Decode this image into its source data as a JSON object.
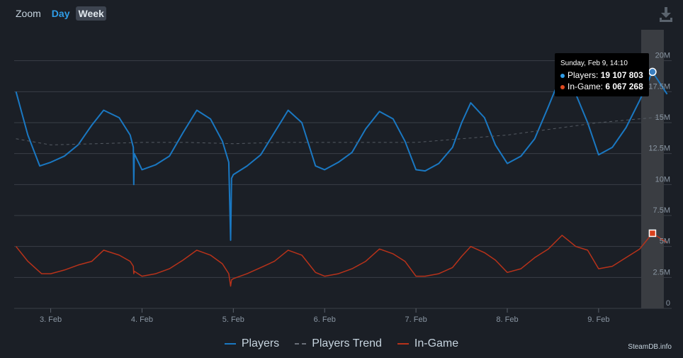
{
  "toolbar": {
    "zoom_label": "Zoom",
    "day_label": "Day",
    "week_label": "Week",
    "download_icon": "download-icon"
  },
  "legend": {
    "players": "Players",
    "trend": "Players Trend",
    "ingame": "In-Game"
  },
  "tooltip": {
    "title": "Sunday, Feb 9, 14:10",
    "players_label": "Players:",
    "players_value": "19 107 803",
    "ingame_label": "In-Game:",
    "ingame_value": "6 067 268"
  },
  "credit": "SteamDB.info",
  "colors": {
    "background": "#1b1f26",
    "players": "#1a78c2",
    "ingame": "#b8321a",
    "trend": "#555b63",
    "grid": "#3a3f47",
    "highlight": "#3a3d42"
  },
  "chart_data": {
    "type": "line",
    "xlabel": "",
    "ylabel": "",
    "ylim": [
      0,
      22500000
    ],
    "yticks": [
      0,
      2500000,
      5000000,
      7500000,
      10000000,
      12500000,
      15000000,
      17500000,
      20000000
    ],
    "ytick_labels": [
      "0",
      "2.5M",
      "5M",
      "7.5M",
      "10M",
      "12.5M",
      "15M",
      "17.5M",
      "20M"
    ],
    "xlim": [
      2.6,
      9.8
    ],
    "xticks": [
      3,
      4,
      5,
      6,
      7,
      8,
      9
    ],
    "xtick_labels": [
      "3. Feb",
      "4. Feb",
      "5. Feb",
      "6. Feb",
      "7. Feb",
      "8. Feb",
      "9. Feb"
    ],
    "legend_position": "bottom-center",
    "grid": true,
    "highlight_x": 9.59,
    "series": [
      {
        "name": "Players",
        "points": [
          [
            2.62,
            17.5
          ],
          [
            2.75,
            14.0
          ],
          [
            2.88,
            11.5
          ],
          [
            3.0,
            11.8
          ],
          [
            3.15,
            12.3
          ],
          [
            3.3,
            13.2
          ],
          [
            3.45,
            14.8
          ],
          [
            3.58,
            16.0
          ],
          [
            3.75,
            15.4
          ],
          [
            3.87,
            14.0
          ],
          [
            3.905,
            13.0
          ],
          [
            3.91,
            10.0
          ],
          [
            3.915,
            12.5
          ],
          [
            4.0,
            11.2
          ],
          [
            4.15,
            11.6
          ],
          [
            4.3,
            12.3
          ],
          [
            4.45,
            14.2
          ],
          [
            4.6,
            16.0
          ],
          [
            4.75,
            15.3
          ],
          [
            4.88,
            13.5
          ],
          [
            4.95,
            11.8
          ],
          [
            4.97,
            5.5
          ],
          [
            4.98,
            10.5
          ],
          [
            5.0,
            10.8
          ],
          [
            5.15,
            11.5
          ],
          [
            5.3,
            12.4
          ],
          [
            5.45,
            14.2
          ],
          [
            5.6,
            16.0
          ],
          [
            5.75,
            15.0
          ],
          [
            5.9,
            11.5
          ],
          [
            6.0,
            11.2
          ],
          [
            6.15,
            11.8
          ],
          [
            6.3,
            12.6
          ],
          [
            6.45,
            14.5
          ],
          [
            6.6,
            15.9
          ],
          [
            6.75,
            15.3
          ],
          [
            6.88,
            13.5
          ],
          [
            7.0,
            11.2
          ],
          [
            7.1,
            11.1
          ],
          [
            7.25,
            11.7
          ],
          [
            7.4,
            13.0
          ],
          [
            7.5,
            15.0
          ],
          [
            7.6,
            16.6
          ],
          [
            7.75,
            15.4
          ],
          [
            7.87,
            13.2
          ],
          [
            8.0,
            11.7
          ],
          [
            8.15,
            12.3
          ],
          [
            8.3,
            13.7
          ],
          [
            8.45,
            16.3
          ],
          [
            8.6,
            19.0
          ],
          [
            8.75,
            17.3
          ],
          [
            8.88,
            15.0
          ],
          [
            9.0,
            12.4
          ],
          [
            9.15,
            13.0
          ],
          [
            9.3,
            14.6
          ],
          [
            9.45,
            16.8
          ],
          [
            9.59,
            19.1
          ],
          [
            9.75,
            17.3
          ]
        ]
      },
      {
        "name": "Players Trend",
        "points": [
          [
            2.62,
            13.7
          ],
          [
            3.0,
            13.2
          ],
          [
            3.5,
            13.3
          ],
          [
            4.0,
            13.4
          ],
          [
            4.5,
            13.4
          ],
          [
            5.0,
            13.3
          ],
          [
            5.5,
            13.4
          ],
          [
            6.0,
            13.4
          ],
          [
            6.5,
            13.4
          ],
          [
            7.0,
            13.4
          ],
          [
            7.5,
            13.7
          ],
          [
            8.0,
            14.0
          ],
          [
            8.5,
            14.5
          ],
          [
            9.0,
            15.0
          ],
          [
            9.59,
            15.4
          ],
          [
            9.75,
            15.5
          ]
        ]
      },
      {
        "name": "In-Game",
        "points": [
          [
            2.62,
            5.0
          ],
          [
            2.75,
            3.8
          ],
          [
            2.9,
            2.8
          ],
          [
            3.0,
            2.8
          ],
          [
            3.15,
            3.1
          ],
          [
            3.3,
            3.5
          ],
          [
            3.45,
            3.8
          ],
          [
            3.58,
            4.7
          ],
          [
            3.75,
            4.3
          ],
          [
            3.87,
            3.8
          ],
          [
            3.905,
            3.4
          ],
          [
            3.91,
            2.8
          ],
          [
            3.915,
            3.0
          ],
          [
            4.0,
            2.6
          ],
          [
            4.15,
            2.8
          ],
          [
            4.3,
            3.2
          ],
          [
            4.45,
            3.9
          ],
          [
            4.6,
            4.7
          ],
          [
            4.75,
            4.3
          ],
          [
            4.88,
            3.6
          ],
          [
            4.95,
            2.8
          ],
          [
            4.97,
            1.8
          ],
          [
            4.98,
            2.3
          ],
          [
            5.0,
            2.4
          ],
          [
            5.15,
            2.8
          ],
          [
            5.3,
            3.3
          ],
          [
            5.45,
            3.8
          ],
          [
            5.6,
            4.7
          ],
          [
            5.75,
            4.3
          ],
          [
            5.9,
            2.9
          ],
          [
            6.0,
            2.6
          ],
          [
            6.15,
            2.8
          ],
          [
            6.3,
            3.2
          ],
          [
            6.45,
            3.8
          ],
          [
            6.6,
            4.8
          ],
          [
            6.75,
            4.4
          ],
          [
            6.88,
            3.8
          ],
          [
            7.0,
            2.6
          ],
          [
            7.1,
            2.6
          ],
          [
            7.25,
            2.8
          ],
          [
            7.4,
            3.3
          ],
          [
            7.5,
            4.2
          ],
          [
            7.6,
            5.0
          ],
          [
            7.75,
            4.5
          ],
          [
            7.87,
            3.9
          ],
          [
            8.0,
            2.9
          ],
          [
            8.15,
            3.2
          ],
          [
            8.3,
            4.1
          ],
          [
            8.45,
            4.8
          ],
          [
            8.6,
            5.9
          ],
          [
            8.75,
            5.0
          ],
          [
            8.88,
            4.7
          ],
          [
            9.0,
            3.2
          ],
          [
            9.15,
            3.4
          ],
          [
            9.3,
            4.1
          ],
          [
            9.45,
            4.8
          ],
          [
            9.59,
            6.07
          ],
          [
            9.75,
            5.3
          ]
        ]
      }
    ]
  }
}
